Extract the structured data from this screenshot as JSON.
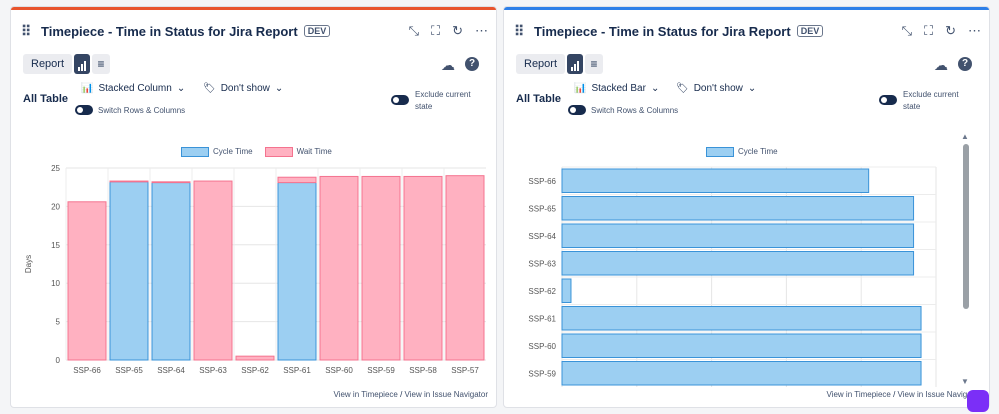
{
  "panels": [
    {
      "title": "Timepiece - Time in Status for Jira Report",
      "badge": "DEV",
      "accent": "#e8542d",
      "report_label": "Report",
      "table_label": "All Table",
      "chart_type_label": "Stacked Column",
      "dont_show_label": "Don't show",
      "switch_label": "Switch Rows & Columns",
      "exclude_label": "Exclude current state",
      "footer_link1": "View in Timepiece",
      "footer_sep": "/",
      "footer_link2": "View in Issue Navigator",
      "legend": [
        "Cycle Time",
        "Wait Time"
      ]
    },
    {
      "title": "Timepiece - Time in Status for Jira Report",
      "badge": "DEV",
      "accent": "#2d7fe8",
      "report_label": "Report",
      "table_label": "All Table",
      "chart_type_label": "Stacked Bar",
      "dont_show_label": "Don't show",
      "switch_label": "Switch Rows & Columns",
      "exclude_label": "Exclude current state",
      "footer_link1": "View in Timepiece",
      "footer_sep": "/",
      "footer_link2": "View in Issue Navigator",
      "legend": [
        "Cycle Time"
      ]
    }
  ],
  "colors": {
    "cycle": "#9ccff2",
    "cycle_border": "#3a93d8",
    "wait": "#ffb1c1",
    "wait_border": "#f4738f"
  },
  "chart_data": [
    {
      "type": "bar",
      "stacked": true,
      "categories": [
        "SSP-66",
        "SSP-65",
        "SSP-64",
        "SSP-63",
        "SSP-62",
        "SSP-61",
        "SSP-60",
        "SSP-59",
        "SSP-58",
        "SSP-57"
      ],
      "series": [
        {
          "name": "Cycle Time",
          "values": [
            0,
            23.2,
            23.1,
            0,
            0,
            23.1,
            0,
            0,
            0,
            0
          ]
        },
        {
          "name": "Wait Time",
          "values": [
            20.6,
            0.1,
            0.1,
            23.3,
            0.5,
            0.7,
            23.9,
            23.9,
            23.9,
            24.0
          ]
        }
      ],
      "ylabel": "Days",
      "ylim": [
        0,
        25
      ],
      "yticks": [
        0,
        5,
        10,
        15,
        20,
        25
      ]
    },
    {
      "type": "bar",
      "orientation": "horizontal",
      "categories": [
        "SSP-66",
        "SSP-65",
        "SSP-64",
        "SSP-63",
        "SSP-62",
        "SSP-61",
        "SSP-60",
        "SSP-59"
      ],
      "series": [
        {
          "name": "Cycle Time",
          "values": [
            20.5,
            23.5,
            23.5,
            23.5,
            0.6,
            24.0,
            24.0,
            24.0
          ]
        }
      ],
      "xlim": [
        0,
        25
      ]
    }
  ]
}
